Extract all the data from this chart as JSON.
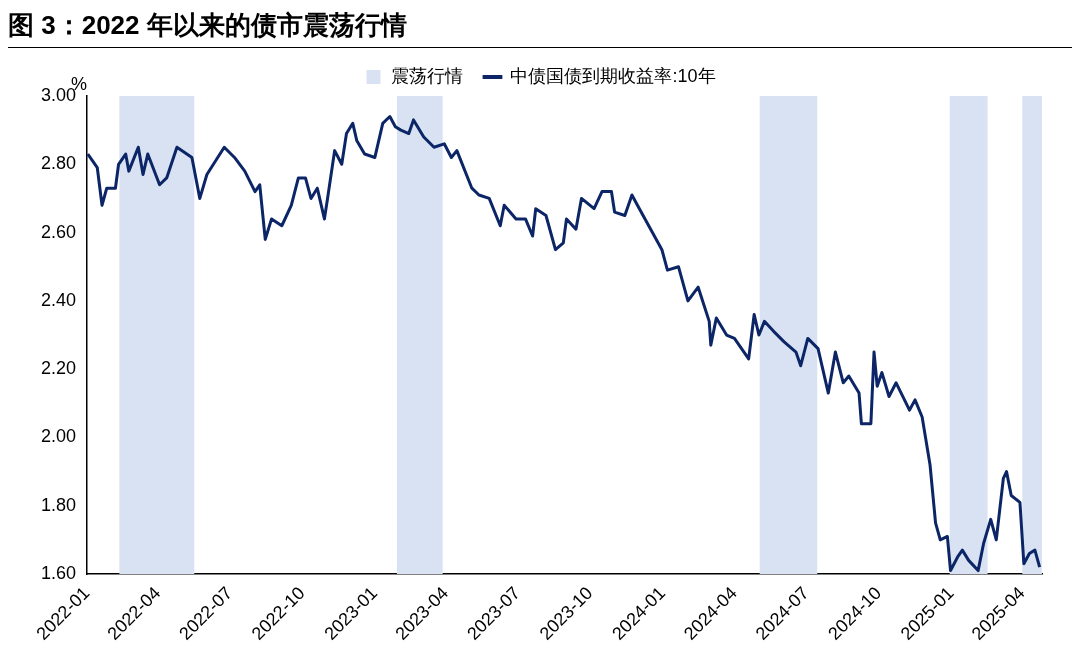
{
  "chart_data": {
    "type": "line",
    "title": "图 3：2022 年以来的债市震荡行情",
    "ylabel": "%",
    "xlim": [
      "2022-01-01",
      "2025-04-26"
    ],
    "xticks": [
      {
        "value": "2022-01-01",
        "label": "2022-01"
      },
      {
        "value": "2022-04-01",
        "label": "2022-04"
      },
      {
        "value": "2022-07-01",
        "label": "2022-07"
      },
      {
        "value": "2022-10-01",
        "label": "2022-10"
      },
      {
        "value": "2023-01-01",
        "label": "2023-01"
      },
      {
        "value": "2023-04-01",
        "label": "2023-04"
      },
      {
        "value": "2023-07-01",
        "label": "2023-07"
      },
      {
        "value": "2023-10-01",
        "label": "2023-10"
      },
      {
        "value": "2024-01-01",
        "label": "2024-01"
      },
      {
        "value": "2024-04-01",
        "label": "2024-04"
      },
      {
        "value": "2024-07-01",
        "label": "2024-07"
      },
      {
        "value": "2024-10-01",
        "label": "2024-10"
      },
      {
        "value": "2025-01-01",
        "label": "2025-01"
      },
      {
        "value": "2025-04-01",
        "label": "2025-04"
      }
    ],
    "ylim": [
      1.6,
      3.0
    ],
    "yticks": [
      {
        "value": 1.6,
        "label": "1.60"
      },
      {
        "value": 1.8,
        "label": "1.80"
      },
      {
        "value": 2.0,
        "label": "2.00"
      },
      {
        "value": 2.2,
        "label": "2.20"
      },
      {
        "value": 2.4,
        "label": "2.40"
      },
      {
        "value": 2.6,
        "label": "2.60"
      },
      {
        "value": 2.8,
        "label": "2.80"
      },
      {
        "value": 3.0,
        "label": "3.00"
      }
    ],
    "legend": "top",
    "marker": "none",
    "line_style": "solid",
    "bands": [
      {
        "axis": "x",
        "from": "2022-02-11",
        "to": "2022-05-17",
        "label": "震荡行情",
        "color": "#d9e2f3"
      },
      {
        "axis": "x",
        "from": "2023-01-29",
        "to": "2023-03-28",
        "color": "#d9e2f3"
      },
      {
        "axis": "x",
        "from": "2024-05-03",
        "to": "2024-07-15",
        "color": "#d9e2f3"
      },
      {
        "axis": "x",
        "from": "2024-12-30",
        "to": "2025-02-16",
        "color": "#d9e2f3"
      },
      {
        "axis": "x",
        "from": "2025-04-01",
        "to": "2025-04-26",
        "color": "#d9e2f3"
      }
    ],
    "series": [
      {
        "name": "中债国债到期收益率:10年",
        "color": "#0b2566",
        "x": [
          "2022-01-02",
          "2022-01-14",
          "2022-01-20",
          "2022-01-26",
          "2022-02-06",
          "2022-02-10",
          "2022-02-19",
          "2022-02-23",
          "2022-03-07",
          "2022-03-13",
          "2022-03-19",
          "2022-04-03",
          "2022-04-12",
          "2022-04-25",
          "2022-05-14",
          "2022-05-24",
          "2022-06-02",
          "2022-06-24",
          "2022-07-07",
          "2022-07-20",
          "2022-08-02",
          "2022-08-08",
          "2022-08-15",
          "2022-08-23",
          "2022-09-05",
          "2022-09-17",
          "2022-09-26",
          "2022-10-05",
          "2022-10-12",
          "2022-10-20",
          "2022-10-29",
          "2022-11-02",
          "2022-11-11",
          "2022-11-20",
          "2022-11-26",
          "2022-12-04",
          "2022-12-09",
          "2022-12-19",
          "2023-01-01",
          "2023-01-11",
          "2023-01-20",
          "2023-01-27",
          "2023-02-03",
          "2023-02-13",
          "2023-02-19",
          "2023-03-04",
          "2023-03-17",
          "2023-03-30",
          "2023-04-08",
          "2023-04-15",
          "2023-05-04",
          "2023-05-13",
          "2023-05-26",
          "2023-06-09",
          "2023-06-14",
          "2023-06-29",
          "2023-07-11",
          "2023-07-20",
          "2023-07-24",
          "2023-08-06",
          "2023-08-18",
          "2023-08-28",
          "2023-09-01",
          "2023-09-13",
          "2023-09-20",
          "2023-10-06",
          "2023-10-16",
          "2023-10-28",
          "2023-11-01",
          "2023-11-14",
          "2023-11-23",
          "2023-11-30",
          "2023-12-19",
          "2023-12-31",
          "2024-01-07",
          "2024-01-21",
          "2024-02-02",
          "2024-02-15",
          "2024-02-29",
          "2024-03-02",
          "2024-03-09",
          "2024-03-22",
          "2024-04-01",
          "2024-04-19",
          "2024-04-26",
          "2024-05-02",
          "2024-05-09",
          "2024-05-21",
          "2024-06-03",
          "2024-06-18",
          "2024-06-24",
          "2024-07-03",
          "2024-07-16",
          "2024-07-29",
          "2024-08-07",
          "2024-08-17",
          "2024-08-24",
          "2024-09-06",
          "2024-09-09",
          "2024-09-21",
          "2024-09-25",
          "2024-09-29",
          "2024-10-05",
          "2024-10-14",
          "2024-10-23",
          "2024-11-09",
          "2024-11-16",
          "2024-11-25",
          "2024-12-05",
          "2024-12-12",
          "2024-12-18",
          "2024-12-27",
          "2024-12-31",
          "2025-01-09",
          "2025-01-15",
          "2025-01-23",
          "2025-02-04",
          "2025-02-11",
          "2025-02-20",
          "2025-02-27",
          "2025-03-08",
          "2025-03-12",
          "2025-03-18",
          "2025-03-29",
          "2025-04-03",
          "2025-04-10",
          "2025-04-17",
          "2025-04-23"
        ],
        "values": [
          2.83,
          2.79,
          2.68,
          2.73,
          2.73,
          2.8,
          2.83,
          2.78,
          2.85,
          2.77,
          2.83,
          2.74,
          2.76,
          2.85,
          2.82,
          2.7,
          2.77,
          2.85,
          2.82,
          2.78,
          2.72,
          2.74,
          2.58,
          2.64,
          2.62,
          2.68,
          2.76,
          2.76,
          2.7,
          2.73,
          2.64,
          2.7,
          2.84,
          2.8,
          2.89,
          2.92,
          2.87,
          2.83,
          2.82,
          2.92,
          2.94,
          2.91,
          2.9,
          2.89,
          2.93,
          2.88,
          2.85,
          2.86,
          2.82,
          2.84,
          2.73,
          2.71,
          2.7,
          2.62,
          2.68,
          2.64,
          2.64,
          2.59,
          2.67,
          2.65,
          2.55,
          2.57,
          2.64,
          2.61,
          2.7,
          2.67,
          2.72,
          2.72,
          2.66,
          2.65,
          2.71,
          2.68,
          2.6,
          2.55,
          2.49,
          2.5,
          2.4,
          2.44,
          2.34,
          2.27,
          2.35,
          2.3,
          2.29,
          2.23,
          2.36,
          2.3,
          2.34,
          2.31,
          2.28,
          2.25,
          2.21,
          2.29,
          2.26,
          2.13,
          2.25,
          2.16,
          2.18,
          2.13,
          2.04,
          2.04,
          2.25,
          2.15,
          2.19,
          2.12,
          2.16,
          2.08,
          2.11,
          2.06,
          1.92,
          1.75,
          1.7,
          1.71,
          1.61,
          1.65,
          1.67,
          1.64,
          1.61,
          1.69,
          1.76,
          1.7,
          1.88,
          1.9,
          1.83,
          1.81,
          1.63,
          1.66,
          1.67,
          1.62
        ]
      }
    ]
  }
}
